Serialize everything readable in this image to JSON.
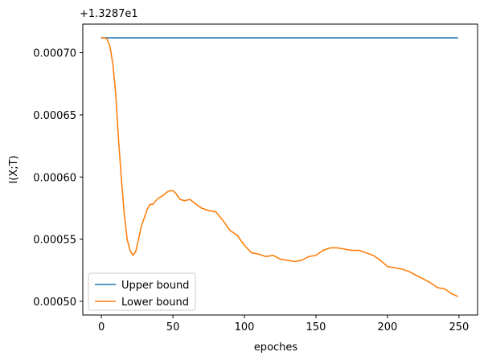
{
  "chart_data": {
    "type": "line",
    "xlabel": "epoches",
    "ylabel": "I(X;T)",
    "offset_text": "+1.3287e1",
    "xlim": [
      -13,
      263
    ],
    "ylim": [
      0.000489,
      0.000723
    ],
    "xticks": [
      0,
      50,
      100,
      150,
      200,
      250
    ],
    "xtick_labels": [
      "0",
      "50",
      "100",
      "150",
      "200",
      "250"
    ],
    "yticks": [
      0.0005,
      0.00055,
      0.0006,
      0.00065,
      0.0007
    ],
    "ytick_labels": [
      "0.00050",
      "0.00055",
      "0.00060",
      "0.00065",
      "0.00070"
    ],
    "grid": false,
    "legend_position": "lower-left",
    "colors": {
      "upper": "#1f77b4",
      "lower": "#ff7f0e"
    },
    "series": [
      {
        "name": "Upper bound",
        "color": "#1f77b4",
        "x": [
          0,
          249
        ],
        "y": [
          0.000712,
          0.000712
        ]
      },
      {
        "name": "Lower bound",
        "color": "#ff7f0e",
        "x": [
          0,
          2,
          4,
          6,
          8,
          10,
          12,
          14,
          16,
          18,
          20,
          22,
          24,
          26,
          28,
          30,
          32,
          34,
          36,
          38,
          40,
          43,
          46,
          48,
          50,
          52,
          55,
          58,
          62,
          65,
          70,
          75,
          80,
          85,
          90,
          95,
          100,
          105,
          110,
          115,
          120,
          125,
          130,
          135,
          140,
          145,
          150,
          155,
          160,
          165,
          170,
          175,
          180,
          185,
          190,
          195,
          200,
          205,
          210,
          215,
          220,
          225,
          230,
          235,
          240,
          245,
          249
        ],
        "y": [
          0.000712,
          0.000712,
          0.000711,
          0.000705,
          0.000691,
          0.000667,
          0.00063,
          0.000598,
          0.00057,
          0.00055,
          0.000541,
          0.000537,
          0.00054,
          0.00055,
          0.000561,
          0.000567,
          0.000574,
          0.000578,
          0.000578,
          0.000581,
          0.000583,
          0.000585,
          0.000588,
          0.000589,
          0.000589,
          0.000587,
          0.000582,
          0.000581,
          0.000582,
          0.000579,
          0.000575,
          0.000573,
          0.000572,
          0.000565,
          0.000557,
          0.000553,
          0.000545,
          0.000539,
          0.000538,
          0.000536,
          0.000537,
          0.000534,
          0.000533,
          0.000532,
          0.000533,
          0.000536,
          0.000537,
          0.000541,
          0.000543,
          0.000543,
          0.000542,
          0.000541,
          0.000541,
          0.000539,
          0.000537,
          0.000533,
          0.000528,
          0.000527,
          0.000526,
          0.000524,
          0.000521,
          0.000518,
          0.000515,
          0.000511,
          0.00051,
          0.000506,
          0.000504
        ]
      }
    ]
  }
}
